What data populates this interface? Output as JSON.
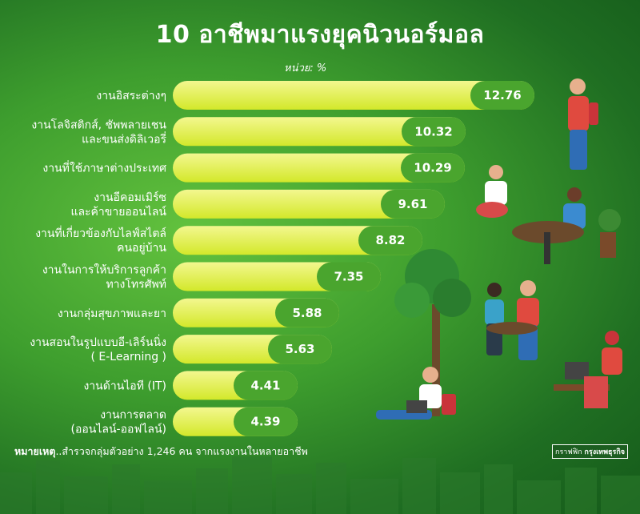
{
  "title": "10 อาชีพมาแรงยุคนิวนอร์มอล",
  "unit": "หน่วย: %",
  "note_prefix": "หมายเหตุ",
  "note_text": "..สำรวจกลุ่มตัวอย่าง 1,246 คน จากแรงงานในหลายอาชีพ",
  "credit_left": "กราฟฟิก",
  "credit_right": "กรุงเทพธุรกิจ",
  "colors": {
    "bar_start": "#f1f58a",
    "bar_end": "#d6ea2c",
    "value_tab": "#4aa52e",
    "bg": "#3e9e2e"
  },
  "chart_data": {
    "type": "bar",
    "orientation": "horizontal",
    "categories": [
      [
        "งานอิสระต่างๆ"
      ],
      [
        "งานโลจิสติกส์, ชัพพลายเชน",
        "และขนส่งดิลิเวอรี่"
      ],
      [
        "งานที่ใช้ภาษาต่างประเทศ"
      ],
      [
        "งานอีคอมเมิร์ซ",
        "และค้าขายออนไลน์"
      ],
      [
        "งานที่เกี่ยวข้องกับไลฟ์สไตล์",
        "คนอยู่บ้าน"
      ],
      [
        "งานในการให้บริการลูกค้า",
        "ทางโทรศัพท์"
      ],
      [
        "งานกลุ่มสุขภาพและยา"
      ],
      [
        "งานสอนในรูปแบบอี-เลิร์นนิ่ง",
        "( E-Learning )"
      ],
      [
        "งานด้านไอที (IT)"
      ],
      [
        "งานการตลาด",
        "(ออนไลน์-ออฟไลน์)"
      ]
    ],
    "values": [
      12.76,
      10.32,
      10.29,
      9.61,
      8.82,
      7.35,
      5.88,
      5.63,
      4.41,
      4.39
    ],
    "value_labels": [
      "12.76",
      "10.32",
      "10.29",
      "9.61",
      "8.82",
      "7.35",
      "5.88",
      "5.63",
      "4.41",
      "4.39"
    ],
    "xlim": [
      0,
      12.76
    ],
    "grid": false,
    "legend": "none"
  }
}
